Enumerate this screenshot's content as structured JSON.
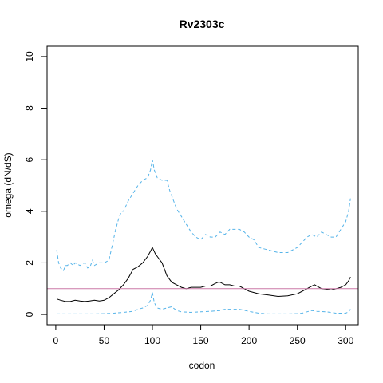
{
  "chart_data": {
    "type": "line",
    "title": "Rv2303c",
    "xlabel": "codon",
    "ylabel": "omega (dN/dS)",
    "xlim": [
      -9,
      313
    ],
    "ylim": [
      -0.4,
      10.4
    ],
    "x_ticks": [
      0,
      50,
      100,
      150,
      200,
      250,
      300
    ],
    "y_ticks": [
      0,
      2,
      4,
      6,
      8,
      10
    ],
    "grid": false,
    "reference_line": {
      "y": 1,
      "color": "#cc79a7"
    },
    "series": [
      {
        "role": "upper",
        "color": "#56b4e9",
        "dash": "dashed",
        "x": [
          1,
          3,
          5,
          8,
          10,
          12,
          15,
          18,
          20,
          25,
          30,
          33,
          36,
          38,
          40,
          45,
          50,
          55,
          58,
          62,
          65,
          68,
          70,
          75,
          80,
          85,
          90,
          95,
          98,
          100,
          102,
          105,
          110,
          115,
          118,
          120,
          125,
          130,
          135,
          140,
          145,
          150,
          155,
          160,
          165,
          170,
          175,
          180,
          190,
          195,
          200,
          205,
          210,
          220,
          230,
          240,
          250,
          255,
          260,
          265,
          270,
          275,
          280,
          285,
          290,
          295,
          300,
          303,
          305
        ],
        "y": [
          2.5,
          2.0,
          1.8,
          1.7,
          1.9,
          1.9,
          2.0,
          1.9,
          2.0,
          1.9,
          2.0,
          1.8,
          1.9,
          2.1,
          1.9,
          2.0,
          2.0,
          2.1,
          2.6,
          3.3,
          3.7,
          4.0,
          4.0,
          4.4,
          4.7,
          5.0,
          5.2,
          5.3,
          5.6,
          6.0,
          5.6,
          5.3,
          5.2,
          5.2,
          4.8,
          4.6,
          4.1,
          3.8,
          3.5,
          3.2,
          3.0,
          2.9,
          3.1,
          3.0,
          3.0,
          3.2,
          3.1,
          3.3,
          3.3,
          3.2,
          3.0,
          2.9,
          2.6,
          2.5,
          2.4,
          2.4,
          2.6,
          2.8,
          3.0,
          3.1,
          3.0,
          3.2,
          3.1,
          3.0,
          3.0,
          3.3,
          3.6,
          4.0,
          4.5
        ]
      },
      {
        "role": "estimate",
        "color": "#000000",
        "dash": "solid",
        "x": [
          1,
          5,
          10,
          15,
          20,
          25,
          30,
          35,
          40,
          45,
          50,
          55,
          60,
          65,
          70,
          75,
          80,
          85,
          90,
          95,
          98,
          100,
          103,
          106,
          110,
          115,
          120,
          125,
          130,
          135,
          140,
          145,
          150,
          155,
          160,
          165,
          168,
          170,
          175,
          180,
          185,
          190,
          195,
          200,
          205,
          210,
          220,
          230,
          240,
          250,
          255,
          260,
          265,
          268,
          270,
          275,
          280,
          285,
          290,
          295,
          300,
          303,
          305
        ],
        "y": [
          0.6,
          0.55,
          0.5,
          0.5,
          0.55,
          0.52,
          0.5,
          0.52,
          0.55,
          0.52,
          0.55,
          0.65,
          0.8,
          0.95,
          1.15,
          1.4,
          1.75,
          1.85,
          2.0,
          2.25,
          2.45,
          2.6,
          2.35,
          2.2,
          2.0,
          1.5,
          1.25,
          1.15,
          1.05,
          1.0,
          1.05,
          1.05,
          1.05,
          1.1,
          1.1,
          1.2,
          1.25,
          1.25,
          1.15,
          1.15,
          1.1,
          1.1,
          1.0,
          0.9,
          0.85,
          0.8,
          0.75,
          0.7,
          0.72,
          0.8,
          0.9,
          1.0,
          1.1,
          1.15,
          1.1,
          1.0,
          0.98,
          0.95,
          1.0,
          1.05,
          1.15,
          1.3,
          1.45
        ]
      },
      {
        "role": "lower",
        "color": "#56b4e9",
        "dash": "dashed",
        "x": [
          1,
          10,
          20,
          30,
          40,
          50,
          60,
          70,
          80,
          85,
          90,
          95,
          98,
          100,
          102,
          105,
          110,
          115,
          120,
          125,
          130,
          140,
          150,
          160,
          170,
          175,
          180,
          190,
          200,
          210,
          220,
          230,
          240,
          250,
          255,
          260,
          265,
          270,
          280,
          290,
          300,
          303,
          305
        ],
        "y": [
          0.02,
          0.02,
          0.02,
          0.02,
          0.02,
          0.03,
          0.05,
          0.08,
          0.12,
          0.2,
          0.25,
          0.35,
          0.55,
          0.85,
          0.45,
          0.25,
          0.2,
          0.25,
          0.3,
          0.15,
          0.1,
          0.08,
          0.1,
          0.12,
          0.15,
          0.2,
          0.2,
          0.2,
          0.12,
          0.05,
          0.02,
          0.02,
          0.02,
          0.03,
          0.05,
          0.1,
          0.15,
          0.12,
          0.1,
          0.05,
          0.05,
          0.1,
          0.2
        ]
      }
    ]
  }
}
